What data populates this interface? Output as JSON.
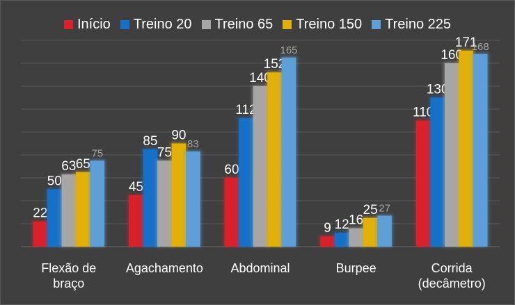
{
  "chart_data": {
    "type": "bar",
    "categories": [
      "Flexão de braço",
      "Agachamento",
      "Abdominal",
      "Burpee",
      "Corrida (decâmetro)"
    ],
    "category_lines": [
      [
        "Flexão de",
        "braço"
      ],
      [
        "Agachamento"
      ],
      [
        "Abdominal"
      ],
      [
        "Burpee"
      ],
      [
        "Corrida",
        "(decâmetro)"
      ]
    ],
    "series": [
      {
        "name": "Início",
        "values": [
          22,
          45,
          60,
          9,
          110
        ],
        "color": "#d8212b"
      },
      {
        "name": "Treino 20",
        "values": [
          50,
          85,
          112,
          12,
          130
        ],
        "color": "#1770c8"
      },
      {
        "name": "Treino 65",
        "values": [
          63,
          75,
          140,
          16,
          160
        ],
        "color": "#a6a6a6"
      },
      {
        "name": "Treino 150",
        "values": [
          65,
          90,
          152,
          25,
          171
        ],
        "color": "#e2b00a"
      },
      {
        "name": "Treino 225",
        "values": [
          75,
          83,
          165,
          27,
          168
        ],
        "color": "#5f9fd7"
      }
    ],
    "ylim": [
      0,
      180
    ],
    "grid": true,
    "legend_position": "top",
    "y_tick_labels_shown": false
  },
  "colors": {
    "background": "#3f3f3f",
    "gridline": "#595959",
    "text": "#ffffff",
    "muted_label": "#a6a6a6"
  }
}
